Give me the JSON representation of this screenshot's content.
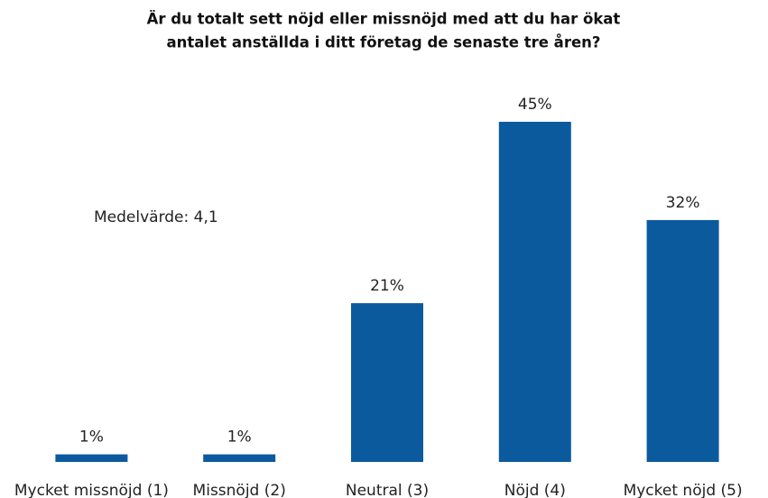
{
  "chart_data": {
    "type": "bar",
    "title": [
      "Är du totalt sett nöjd eller missnöjd med att du har ökat",
      "antalet anställda i ditt företag de senaste tre åren?"
    ],
    "annotation": "Medelvärde: 4,1",
    "categories": [
      "Mycket missnöjd (1)",
      "Missnöjd (2)",
      "Neutral (3)",
      "Nöjd (4)",
      "Mycket nöjd (5)"
    ],
    "values": [
      1,
      1,
      21,
      45,
      32
    ],
    "value_labels": [
      "1%",
      "1%",
      "21%",
      "45%",
      "32%"
    ],
    "color": "#0b5a9e"
  }
}
